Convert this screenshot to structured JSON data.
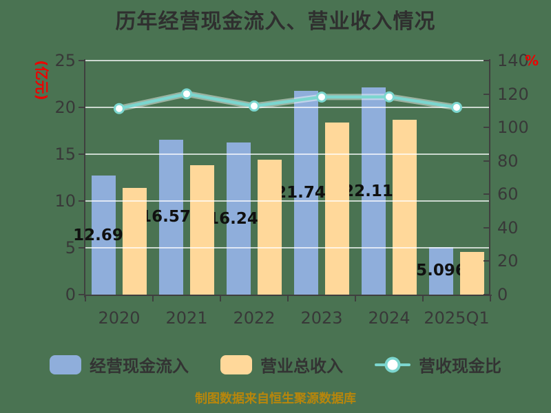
{
  "title": "历年经营现金流入、营业收入情况",
  "source_note": "制图数据来自恒生聚源数据库",
  "axes": {
    "left": {
      "name": "(亿元)",
      "ticks": [
        "0",
        "5",
        "10",
        "15",
        "20",
        "25"
      ],
      "max": 25
    },
    "right": {
      "name": "%",
      "ticks": [
        "0",
        "20",
        "40",
        "60",
        "80",
        "100",
        "120",
        "140"
      ],
      "max": 140
    }
  },
  "legend": {
    "items": [
      {
        "label": "经营现金流入",
        "type": "bar"
      },
      {
        "label": "营业总收入",
        "type": "bar"
      },
      {
        "label": "营收现金比",
        "type": "line"
      }
    ]
  },
  "chart_data": {
    "type": "bar-line-combo",
    "title": "历年经营现金流入、营业收入情况",
    "categories": [
      "2020",
      "2021",
      "2022",
      "2023",
      "2024",
      "2025Q1"
    ],
    "series": [
      {
        "name": "经营现金流入",
        "type": "bar",
        "y_axis": "left",
        "unit": "亿元",
        "values": [
          12.693,
          16.57,
          16.248,
          21.745,
          22.116,
          5.096
        ],
        "data_labels": [
          "12.693",
          "16.570",
          "16.248",
          "21.745",
          "22.116",
          "5.096"
        ]
      },
      {
        "name": "营业总收入",
        "type": "bar",
        "y_axis": "left",
        "unit": "亿元",
        "values": [
          11.4,
          13.8,
          14.4,
          18.4,
          18.7,
          4.55
        ]
      },
      {
        "name": "营收现金比",
        "type": "line",
        "y_axis": "right",
        "unit": "%",
        "values": [
          111.3,
          120.1,
          112.8,
          118.2,
          118.3,
          112.0
        ]
      }
    ],
    "left_ylim": [
      0,
      25
    ],
    "left_ylabel": "(亿元)",
    "right_ylim": [
      0,
      140
    ],
    "right_ylabel": "%",
    "grid": true,
    "legend_position": "bottom"
  },
  "colors": {
    "background": "#4A7352",
    "bar_cash": "#8FAEDB",
    "bar_revenue": "#FFD89A",
    "line_ratio": "#7CD6CF",
    "marker_fill": "#FFFFFF",
    "gridline": "rgba(255,255,255,0.72)",
    "axis_line": "#3F3F3F",
    "title_text": "#2F2F2F",
    "axis_text": "#383838",
    "axis_unit_red": "#EE0000",
    "bar_label_text": "#101010",
    "legend_text": "#333333",
    "source_text": "#B8860B"
  }
}
